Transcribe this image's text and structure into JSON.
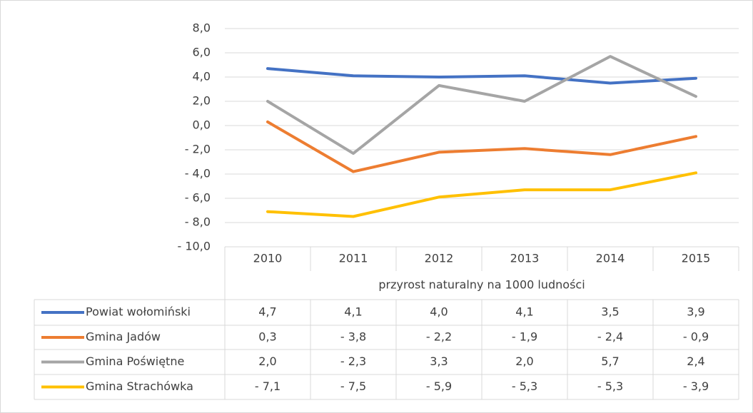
{
  "chart_data": {
    "type": "line",
    "x_label": "przyrost naturalny na 1000 ludności",
    "categories": [
      "2010",
      "2011",
      "2012",
      "2013",
      "2014",
      "2015"
    ],
    "series": [
      {
        "name": "Powiat wołomiński",
        "color": "#4472c4",
        "values": [
          4.7,
          4.1,
          4.0,
          4.1,
          3.5,
          3.9
        ],
        "value_labels": [
          "4,7",
          "4,1",
          "4,0",
          "4,1",
          "3,5",
          "3,9"
        ]
      },
      {
        "name": "Gmina Jadów",
        "color": "#ed7d31",
        "values": [
          0.3,
          -3.8,
          -2.2,
          -1.9,
          -2.4,
          -0.9
        ],
        "value_labels": [
          "0,3",
          "- 3,8",
          "- 2,2",
          "- 1,9",
          "- 2,4",
          "- 0,9"
        ]
      },
      {
        "name": "Gmina Poświętne",
        "color": "#a5a5a5",
        "values": [
          2.0,
          -2.3,
          3.3,
          2.0,
          5.7,
          2.4
        ],
        "value_labels": [
          "2,0",
          "- 2,3",
          "3,3",
          "2,0",
          "5,7",
          "2,4"
        ]
      },
      {
        "name": "Gmina Strachówka",
        "color": "#ffc000",
        "values": [
          -7.1,
          -7.5,
          -5.9,
          -5.3,
          -5.3,
          -3.9
        ],
        "value_labels": [
          "- 7,1",
          "- 7,5",
          "- 5,9",
          "- 5,3",
          "- 5,3",
          "- 3,9"
        ]
      }
    ],
    "ylim": [
      -10,
      8
    ],
    "yticks": [
      {
        "value": -10,
        "label": "- 10,0"
      },
      {
        "value": -8,
        "label": "- 8,0"
      },
      {
        "value": -6,
        "label": "- 6,0"
      },
      {
        "value": -4,
        "label": "- 4,0"
      },
      {
        "value": -2,
        "label": "- 2,0"
      },
      {
        "value": 0,
        "label": "0,0"
      },
      {
        "value": 2,
        "label": "2,0"
      },
      {
        "value": 4,
        "label": "4,0"
      },
      {
        "value": 6,
        "label": "6,0"
      },
      {
        "value": 8,
        "label": "8,0"
      }
    ],
    "grid": true
  }
}
